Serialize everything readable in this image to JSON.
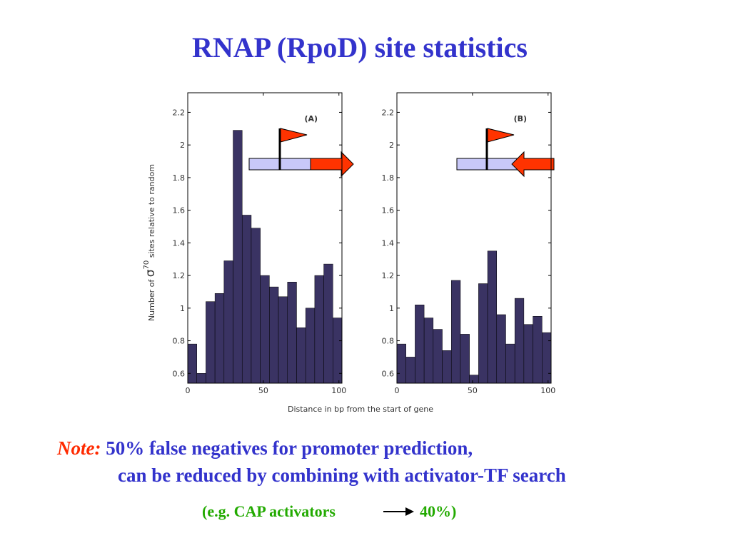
{
  "slide": {
    "title": "RNAP (RpoD) site statistics",
    "xlabel": "Distance in bp from the start of gene",
    "note_label": "Note:",
    "note_line1": "50% false negatives for promoter prediction,",
    "note_line2": "can be reduced by combining with activator-TF search",
    "example_start": "(e.g. CAP activators",
    "example_end": "40%)"
  },
  "chart_data": [
    {
      "type": "histogram",
      "annotation": "(A)",
      "ylabel_start": "Number of",
      "ylabel_symbol": "σ",
      "ylabel_sup": "70",
      "ylabel_end": "sites relative to random",
      "bins": [
        0,
        6,
        12,
        18,
        24,
        30,
        36,
        42,
        48,
        54,
        60,
        66,
        72,
        78,
        84,
        90,
        96,
        102
      ],
      "values": [
        0.78,
        0.6,
        1.04,
        1.09,
        1.29,
        2.09,
        1.57,
        1.49,
        1.2,
        1.13,
        1.07,
        1.16,
        0.88,
        1.0,
        1.2,
        1.27,
        0.94
      ],
      "color": "#3a3363",
      "xlim": [
        0,
        102
      ],
      "ylim": [
        0.54,
        2.32
      ],
      "xticks": [
        0,
        50,
        100
      ],
      "yticks": [
        0.6,
        0.8,
        1,
        1.2,
        1.4,
        1.6,
        1.8,
        2,
        2.2
      ]
    },
    {
      "type": "histogram",
      "annotation": "(B)",
      "bins": [
        0,
        6,
        12,
        18,
        24,
        30,
        36,
        42,
        48,
        54,
        60,
        66,
        72,
        78,
        84,
        90,
        96,
        102
      ],
      "values": [
        0.78,
        0.7,
        1.02,
        0.94,
        0.87,
        0.74,
        1.17,
        0.84,
        0.59,
        1.15,
        1.35,
        0.96,
        0.78,
        1.06,
        0.9,
        0.95,
        0.85
      ],
      "color": "#3a3363",
      "xlim": [
        0,
        102
      ],
      "ylim": [
        0.54,
        2.32
      ],
      "xticks": [
        0,
        50,
        100
      ],
      "yticks": [
        0.6,
        0.8,
        1,
        1.2,
        1.4,
        1.6,
        1.8,
        2,
        2.2
      ]
    }
  ]
}
